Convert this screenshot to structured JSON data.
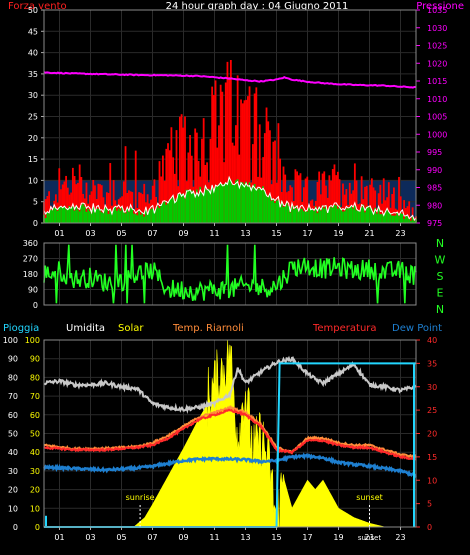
{
  "header": {
    "title": "24 hour graph day : 04 Giugno 2011",
    "left_label": "Forza vento",
    "right_label": "Pressione"
  },
  "colors": {
    "wind": "#ff2020",
    "gust": "#ff0000",
    "green": "#00cc00",
    "white": "#ffffff",
    "pressure": "#ff00ff",
    "direction": "#22ff22",
    "bg_blue": "#0d2a5a",
    "humidity": "#c8c8c8",
    "solar": "#ffff00",
    "temp_riarnoli": "#ff8c3a",
    "temperature": "#ff2a2a",
    "dewpoint": "#1e7fd0",
    "rain": "#22d6ff"
  },
  "chart_data": [
    {
      "type": "line",
      "title": "24 hour graph day : 04 Giugno 2011",
      "x_ticks": [
        "01",
        "03",
        "05",
        "07",
        "09",
        "11",
        "13",
        "15",
        "17",
        "19",
        "21",
        "23"
      ],
      "y_left": {
        "label": "Forza vento",
        "ticks": [
          0,
          5,
          10,
          15,
          20,
          25,
          30,
          35,
          40,
          45,
          50
        ],
        "lim": [
          0,
          50
        ]
      },
      "y_right": {
        "label": "Pressione",
        "ticks": [
          975,
          980,
          985,
          990,
          995,
          1000,
          1005,
          1010,
          1015,
          1020,
          1025,
          1030,
          1035
        ],
        "lim": [
          975,
          1035
        ]
      },
      "series": [
        {
          "name": "Pressione",
          "x": [
            0,
            2,
            4,
            6,
            8,
            10,
            12,
            13,
            14,
            15,
            15.5,
            16,
            17,
            18,
            19,
            20,
            21,
            22,
            23,
            24
          ],
          "values": [
            1017.4,
            1017.1,
            1016.9,
            1016.7,
            1016.6,
            1016.4,
            1015.7,
            1015.2,
            1014.9,
            1015.4,
            1016.0,
            1015.4,
            1014.8,
            1014.4,
            1014.1,
            1013.9,
            1013.8,
            1013.7,
            1013.4,
            1013.2
          ]
        },
        {
          "name": "Forza vento",
          "x": [
            0,
            1,
            2,
            3,
            4,
            5,
            6,
            7,
            8,
            9,
            10,
            11,
            12,
            13,
            14,
            15,
            16,
            17,
            18,
            19,
            20,
            21,
            22,
            23,
            24
          ],
          "values": [
            3,
            6,
            7,
            6,
            5,
            6,
            4,
            5,
            10,
            12,
            14,
            16,
            18,
            16,
            15,
            9,
            6,
            5,
            6,
            6,
            7,
            6,
            5,
            3,
            2
          ]
        }
      ]
    },
    {
      "type": "line",
      "title": "",
      "y_ticks": [
        0,
        90,
        180,
        270,
        360
      ],
      "y_lim": [
        0,
        360
      ],
      "compass": [
        "N",
        "W",
        "S",
        "E",
        "N"
      ],
      "series": [
        {
          "name": "",
          "x": [
            0,
            1,
            2,
            3,
            4,
            5,
            6,
            7,
            8,
            9,
            10,
            11,
            12,
            13,
            14,
            15,
            16,
            17,
            18,
            19,
            20,
            21,
            22,
            23,
            24
          ],
          "values": [
            180,
            200,
            150,
            160,
            130,
            140,
            180,
            200,
            90,
            90,
            80,
            90,
            90,
            110,
            100,
            110,
            220,
            230,
            210,
            220,
            200,
            210,
            190,
            200,
            170
          ]
        }
      ]
    },
    {
      "type": "line",
      "legend": [
        "Pioggia",
        "Umidita",
        "Solar",
        "Temp. Riarnoli",
        "Temperatura",
        "Dew Point"
      ],
      "x_ticks": [
        "01",
        "03",
        "05",
        "07",
        "09",
        "11",
        "13",
        "15",
        "17",
        "19",
        "21",
        "23"
      ],
      "y_left": {
        "ticks": [
          0,
          10,
          20,
          30,
          40,
          50,
          60,
          70,
          80,
          90,
          100
        ],
        "lim": [
          0,
          100
        ]
      },
      "y_right": {
        "ticks": [
          0,
          5,
          10,
          15,
          20,
          25,
          30,
          35,
          40
        ],
        "lim": [
          0,
          40
        ]
      },
      "annotations": [
        "sunrise",
        "sunset"
      ],
      "series": [
        {
          "name": "Umidita",
          "x": [
            0,
            1,
            2,
            3,
            4,
            5,
            6,
            7,
            8,
            9,
            10,
            11,
            12,
            12.5,
            13,
            14,
            15,
            16,
            17,
            17.5,
            18,
            19,
            20,
            21,
            22,
            23,
            24
          ],
          "values": [
            77,
            78,
            76,
            76,
            77,
            75,
            74,
            66,
            64,
            63,
            64,
            66,
            71,
            85,
            77,
            83,
            88,
            90,
            82,
            79,
            77,
            82,
            87,
            76,
            75,
            73,
            75
          ]
        },
        {
          "name": "Solar",
          "x": [
            0,
            5.8,
            6.5,
            7,
            8,
            9,
            10,
            11,
            11.5,
            12,
            12.5,
            13,
            13.5,
            14,
            14.5,
            15,
            15.5,
            16,
            17,
            17.5,
            18,
            19,
            20,
            21,
            22,
            24
          ],
          "values": [
            0,
            0,
            5,
            12,
            27,
            42,
            58,
            72,
            80,
            90,
            45,
            70,
            35,
            45,
            30,
            0,
            25,
            10,
            25,
            20,
            25,
            10,
            5,
            2,
            0,
            0
          ]
        },
        {
          "name": "Temp. Riarnoli",
          "x": [
            0,
            2,
            4,
            6,
            7,
            8,
            9,
            10,
            11,
            12,
            13,
            14,
            15,
            16,
            17,
            18,
            19,
            20,
            21,
            22,
            23,
            24
          ],
          "values": [
            17.5,
            16.7,
            16.8,
            17.2,
            18.0,
            19.5,
            21.5,
            23.5,
            24.5,
            25.5,
            24.5,
            22.0,
            17.0,
            16.0,
            19.0,
            19.0,
            18.0,
            17.5,
            17.5,
            16.5,
            15.5,
            15.0
          ]
        },
        {
          "name": "Temperatura",
          "x": [
            0,
            2,
            4,
            6,
            7,
            8,
            9,
            10,
            11,
            12,
            13,
            14,
            15,
            16,
            17,
            18,
            19,
            20,
            21,
            22,
            23,
            24
          ],
          "values": [
            17.0,
            16.5,
            16.5,
            17.0,
            17.5,
            19.0,
            21.0,
            23.0,
            24.0,
            25.0,
            24.0,
            21.5,
            16.5,
            16.0,
            18.5,
            18.5,
            17.5,
            17.0,
            17.0,
            16.0,
            15.0,
            14.5
          ]
        },
        {
          "name": "Dew Point",
          "x": [
            0,
            2,
            4,
            6,
            7,
            8,
            9,
            10,
            11,
            12,
            13,
            14,
            15,
            16,
            17,
            18,
            19,
            20,
            21,
            22,
            23,
            24
          ],
          "values": [
            12.8,
            12.5,
            12.2,
            12.6,
            13.0,
            13.6,
            14.2,
            14.5,
            14.6,
            14.5,
            14.4,
            14.0,
            14.2,
            15.0,
            15.2,
            14.8,
            13.8,
            13.4,
            13.0,
            12.5,
            12.0,
            11.0
          ]
        },
        {
          "name": "Pioggia",
          "x": [
            0,
            15,
            15.2,
            24
          ],
          "values": [
            0,
            0,
            35,
            35
          ]
        }
      ]
    }
  ],
  "sun": {
    "sunrise_label": "sunrise",
    "sunset_label": "sunset",
    "sunrise_hour": 6.2,
    "sunset_hour": 21.0,
    "bottom_tick_sunset": "sunset"
  }
}
